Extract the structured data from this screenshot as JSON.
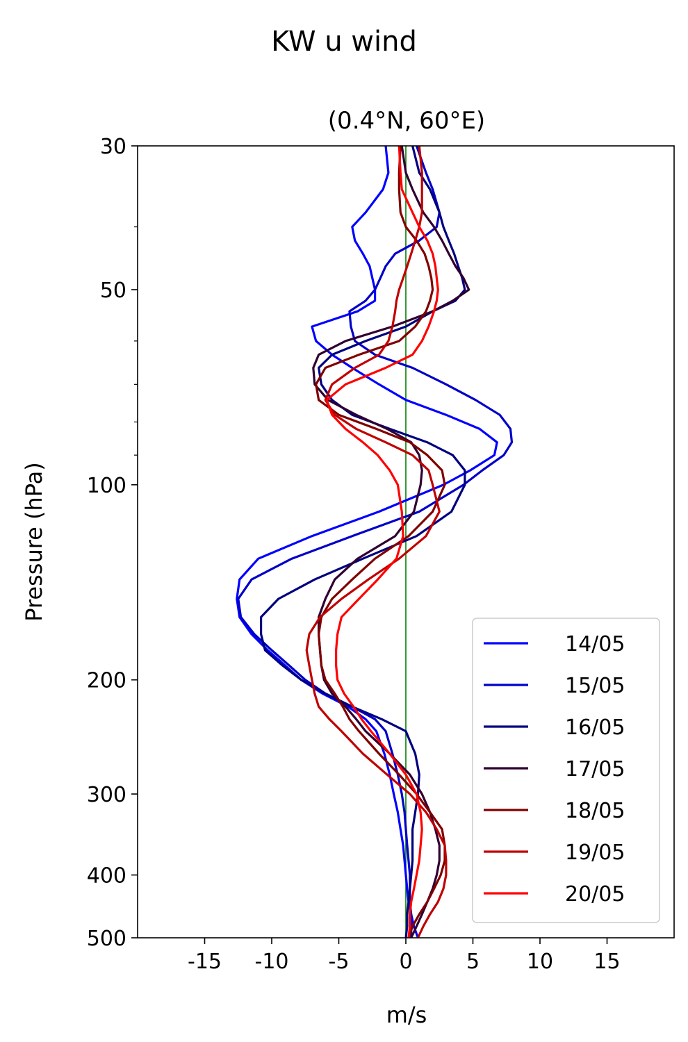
{
  "chart_data": {
    "type": "line",
    "suptitle": "KW u wind",
    "title": "(0.4°N, 60°E)",
    "xlabel": "m/s",
    "ylabel": "Pressure (hPa)",
    "xlim": [
      -20,
      20
    ],
    "ylim": [
      500,
      30
    ],
    "yscale": "log",
    "xticks": [
      -15,
      -10,
      -5,
      0,
      5,
      10,
      15
    ],
    "xtick_labels": [
      "-15",
      "-10",
      "-5",
      "0",
      "5",
      "10",
      "15"
    ],
    "yticks": [
      30,
      50,
      100,
      200,
      300,
      400,
      500
    ],
    "ytick_labels": [
      "30",
      "50",
      "100",
      "200",
      "300",
      "400",
      "500"
    ],
    "yminor": [
      40,
      60,
      70,
      80,
      90
    ],
    "grid": false,
    "legend": "bottom-right",
    "reference_line": {
      "x": 0,
      "color": "#008000"
    },
    "series": [
      {
        "name": "14/05",
        "color": "#0000ff",
        "p": [
          30,
          33,
          35,
          38,
          40,
          42,
          44,
          46,
          48,
          50,
          52,
          54,
          57,
          60,
          63,
          66,
          70,
          74,
          78,
          82,
          86,
          90,
          95,
          100,
          110,
          120,
          130,
          140,
          150,
          160,
          170,
          180,
          190,
          200,
          210,
          220,
          230,
          240,
          260,
          280,
          300,
          320,
          340,
          360,
          380,
          400,
          420,
          440,
          460,
          480,
          500
        ],
        "u": [
          -1.5,
          -1.3,
          -1.7,
          -3,
          -4,
          -3.8,
          -3.2,
          -2.7,
          -2.5,
          -2.3,
          -2.3,
          -3.6,
          -7,
          -6.7,
          -5.5,
          -4,
          -2,
          0,
          3,
          5.5,
          6.8,
          6.6,
          4.8,
          2.8,
          -2,
          -7,
          -11,
          -12.4,
          -12.6,
          -12.4,
          -11.5,
          -10.3,
          -9,
          -7.8,
          -6.2,
          -4.3,
          -3,
          -2.2,
          -1.6,
          -1.2,
          -0.9,
          -0.6,
          -0.4,
          -0.2,
          -0.1,
          0,
          0.1,
          0.2,
          0.4,
          0.6,
          0.9
        ]
      },
      {
        "name": "15/05",
        "color": "#0000c8",
        "p": [
          30,
          33,
          35,
          38,
          40,
          42,
          44,
          46,
          48,
          50,
          52,
          54,
          57,
          60,
          63,
          66,
          70,
          74,
          78,
          82,
          86,
          90,
          95,
          100,
          110,
          120,
          130,
          140,
          150,
          160,
          170,
          180,
          190,
          200,
          210,
          220,
          230,
          240,
          260,
          280,
          300,
          320,
          340,
          360,
          380,
          400,
          420,
          440,
          460,
          480,
          500
        ],
        "u": [
          0.8,
          1.5,
          2,
          2.5,
          2.3,
          1,
          -0.8,
          -1.5,
          -1.9,
          -2.3,
          -3,
          -4.2,
          -4.1,
          -3.8,
          -2.3,
          0.5,
          3,
          5.2,
          7,
          7.8,
          7.9,
          7.3,
          5.7,
          4.3,
          1,
          -4,
          -8.5,
          -11.5,
          -12.5,
          -12.3,
          -11.3,
          -10,
          -8.7,
          -7.5,
          -6,
          -4,
          -2.3,
          -1.5,
          -1,
          -0.6,
          -0.3,
          -0.1,
          0,
          0.1,
          0.2,
          0.3,
          0.3,
          0.3,
          0.4,
          0.4,
          0.4
        ]
      },
      {
        "name": "16/05",
        "color": "#000080",
        "p": [
          30,
          33,
          35,
          38,
          40,
          42,
          44,
          46,
          48,
          50,
          52,
          54,
          57,
          60,
          63,
          66,
          70,
          74,
          78,
          82,
          86,
          90,
          95,
          100,
          110,
          120,
          130,
          140,
          150,
          160,
          170,
          180,
          190,
          200,
          210,
          220,
          230,
          240,
          260,
          280,
          300,
          320,
          340,
          360,
          380,
          400,
          420,
          440,
          460,
          480,
          500
        ],
        "u": [
          0.5,
          1,
          1.8,
          2.5,
          2.8,
          3.2,
          3.6,
          3.9,
          4.2,
          4.4,
          3.7,
          2,
          0,
          -3,
          -5.5,
          -6.5,
          -6.3,
          -5.5,
          -4,
          -1.2,
          1.6,
          3.5,
          4.4,
          4.4,
          3.4,
          0.8,
          -3.2,
          -6.8,
          -9.5,
          -10.8,
          -10.8,
          -10.5,
          -9.2,
          -7.8,
          -6,
          -4,
          -1.8,
          0,
          0.7,
          1,
          0.9,
          0.7,
          0.5,
          0.5,
          0.5,
          0.4,
          0.3,
          0.2,
          0.1,
          0.1,
          0
        ]
      },
      {
        "name": "17/05",
        "color": "#300030",
        "p": [
          30,
          33,
          35,
          38,
          40,
          42,
          44,
          46,
          48,
          50,
          52,
          54,
          57,
          60,
          63,
          66,
          70,
          74,
          78,
          82,
          86,
          90,
          95,
          100,
          110,
          120,
          130,
          140,
          150,
          160,
          170,
          180,
          190,
          200,
          210,
          220,
          230,
          240,
          260,
          280,
          300,
          320,
          340,
          360,
          380,
          400,
          420,
          440,
          460,
          480,
          500
        ],
        "u": [
          -0.3,
          0,
          0.5,
          1.3,
          2.1,
          2.7,
          3.2,
          3.7,
          4.3,
          4.7,
          3.5,
          2,
          -1,
          -4.5,
          -6.5,
          -6.9,
          -6.8,
          -5.8,
          -3.7,
          -1.4,
          0.4,
          1,
          1.2,
          1.1,
          0.6,
          -0.8,
          -3.6,
          -5.3,
          -6,
          -6.5,
          -6.5,
          -6.4,
          -6.3,
          -6.1,
          -5.5,
          -4.5,
          -3.7,
          -3,
          -1.2,
          0.3,
          1.2,
          1.8,
          2.2,
          2.5,
          2.5,
          2.3,
          2,
          1.6,
          1.2,
          0.8,
          0.4
        ]
      },
      {
        "name": "18/05",
        "color": "#800000",
        "p": [
          30,
          33,
          35,
          38,
          40,
          42,
          44,
          46,
          48,
          50,
          52,
          54,
          57,
          60,
          63,
          66,
          70,
          74,
          78,
          82,
          86,
          90,
          95,
          100,
          110,
          120,
          130,
          140,
          150,
          160,
          170,
          180,
          190,
          200,
          210,
          220,
          230,
          240,
          260,
          280,
          300,
          320,
          340,
          360,
          380,
          400,
          420,
          440,
          460,
          480,
          500
        ],
        "u": [
          -0.4,
          -0.5,
          -0.5,
          -0.4,
          0,
          0.8,
          1.4,
          1.7,
          1.9,
          2,
          1.8,
          1.5,
          0.7,
          -0.5,
          -3.5,
          -6,
          -6.7,
          -6.5,
          -5,
          -2.2,
          0.3,
          1.6,
          2.7,
          2.9,
          2,
          0.2,
          -2.3,
          -4,
          -5.5,
          -6.3,
          -6.5,
          -6.4,
          -6.3,
          -6,
          -5.3,
          -4.7,
          -4.2,
          -3.5,
          -2,
          -0.5,
          0.8,
          1.8,
          2.7,
          2.9,
          2.9,
          2.6,
          2.1,
          1.6,
          1,
          0.5,
          0.2
        ]
      },
      {
        "name": "19/05",
        "color": "#c00000",
        "p": [
          30,
          33,
          35,
          38,
          40,
          42,
          44,
          46,
          48,
          50,
          52,
          54,
          57,
          60,
          63,
          66,
          70,
          74,
          78,
          82,
          86,
          90,
          95,
          100,
          110,
          120,
          130,
          140,
          150,
          160,
          170,
          180,
          190,
          200,
          210,
          220,
          230,
          240,
          260,
          280,
          300,
          320,
          340,
          360,
          380,
          400,
          420,
          440,
          460,
          480,
          500
        ],
        "u": [
          1,
          1.2,
          1.2,
          1.2,
          1,
          0.7,
          0.4,
          0.1,
          -0.2,
          -0.5,
          -0.7,
          -0.8,
          -1,
          -1.3,
          -2,
          -3.8,
          -5.5,
          -6,
          -5.3,
          -3.7,
          -1.5,
          0.5,
          1.7,
          2,
          2.5,
          1.5,
          -0.5,
          -2.8,
          -4.8,
          -6.4,
          -7.2,
          -7.4,
          -7.2,
          -7,
          -6.8,
          -6.5,
          -5.7,
          -4.8,
          -3.2,
          -1.4,
          0.3,
          1.5,
          2.3,
          2.9,
          3,
          3,
          2.8,
          2.4,
          1.8,
          1.3,
          0.9
        ]
      },
      {
        "name": "20/05",
        "color": "#ff0000",
        "p": [
          30,
          33,
          35,
          38,
          40,
          42,
          44,
          46,
          48,
          50,
          52,
          54,
          57,
          60,
          63,
          66,
          70,
          74,
          78,
          82,
          86,
          90,
          95,
          100,
          110,
          120,
          130,
          140,
          150,
          160,
          170,
          180,
          190,
          200,
          210,
          220,
          230,
          240,
          260,
          280,
          300,
          320,
          340,
          360,
          380,
          400,
          420,
          440,
          460,
          480,
          500
        ],
        "u": [
          -0.5,
          -0.4,
          -0.3,
          0.5,
          1,
          1.6,
          2,
          2.2,
          2.3,
          2.4,
          2.3,
          2.1,
          1.7,
          1.2,
          0.5,
          -1.5,
          -4.5,
          -5.9,
          -5.5,
          -4.5,
          -3.2,
          -2.1,
          -1.2,
          -0.6,
          -0.3,
          -0.2,
          -0.7,
          -2.1,
          -3.5,
          -4.8,
          -5.1,
          -5.2,
          -5.2,
          -5.1,
          -4.6,
          -3.9,
          -3.3,
          -2.6,
          -1.2,
          0,
          0.8,
          1.1,
          1.2,
          1.1,
          1,
          0.8,
          0.6,
          0.4,
          0.3,
          0.3,
          0.2
        ]
      }
    ]
  }
}
